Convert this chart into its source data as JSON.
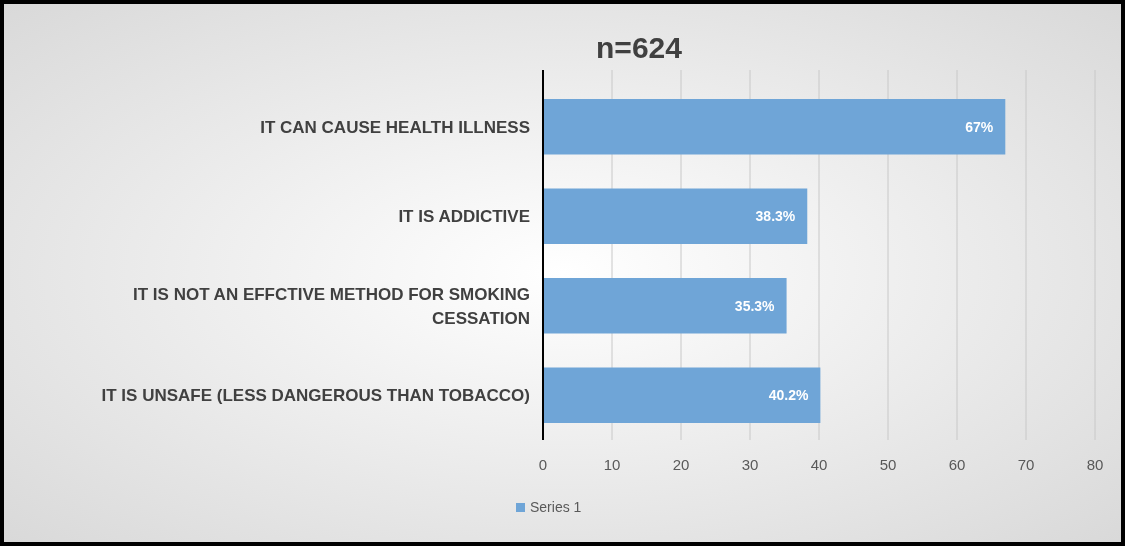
{
  "chart_data": {
    "type": "bar",
    "orientation": "horizontal",
    "title": "n=624",
    "categories": [
      "IT CAN CAUSE HEALTH ILLNESS",
      "IT IS ADDICTIVE",
      "IT IS NOT AN EFFCTIVE METHOD FOR SMOKING CESSATION",
      "IT IS UNSAFE (LESS DANGEROUS THAN TOBACCO)"
    ],
    "series": [
      {
        "name": "Series 1",
        "color": "#6fa5d7",
        "values": [
          67,
          38.3,
          35.3,
          40.2
        ],
        "value_labels": [
          "67%",
          "38.3%",
          "35.3%",
          "40.2%"
        ]
      }
    ],
    "xlim": [
      0,
      80
    ],
    "xticks": [
      0,
      10,
      20,
      30,
      40,
      50,
      60,
      70,
      80
    ],
    "grid": "x",
    "legend": "bottom"
  }
}
